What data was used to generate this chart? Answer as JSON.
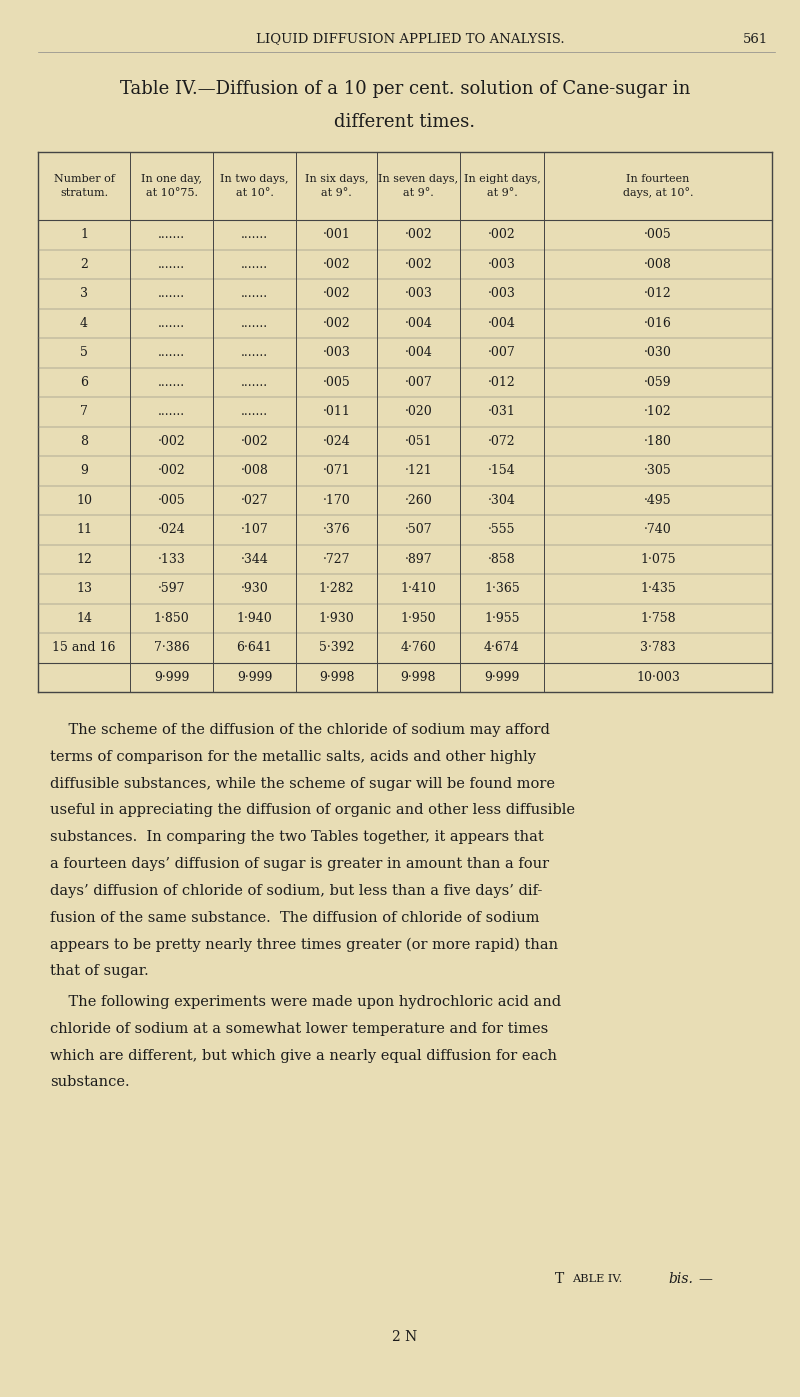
{
  "background_color": "#e8ddb5",
  "page_number": "561",
  "header_text": "LIQUID DIFFUSION APPLIED TO ANALYSIS.",
  "table_title_line1": "Table IV.—Diffusion of a 10 per cent. solution of Cane-sugar in",
  "table_title_line2": "different times.",
  "col_headers": [
    "Number of\nstratum.",
    "In one day,\nat 10°75.",
    "In two days,\nat 10°.",
    "In six days,\nat 9°.",
    "In seven days,\nat 9°.",
    "In eight days,\nat 9°.",
    "In fourteen\ndays, at 10°."
  ],
  "table_data": [
    [
      "1",
      ".......",
      ".......",
      "·001",
      "·002",
      "·002",
      "·005"
    ],
    [
      "2",
      ".......",
      ".......",
      "·002",
      "·002",
      "·003",
      "·008"
    ],
    [
      "3",
      ".......",
      ".......",
      "·002",
      "·003",
      "·003",
      "·012"
    ],
    [
      "4",
      ".......",
      ".......",
      "·002",
      "·004",
      "·004",
      "·016"
    ],
    [
      "5",
      ".......",
      ".......",
      "·003",
      "·004",
      "·007",
      "·030"
    ],
    [
      "6",
      ".......",
      ".......",
      "·005",
      "·007",
      "·012",
      "·059"
    ],
    [
      "7",
      ".......",
      ".......",
      "·011",
      "·020",
      "·031",
      "·102"
    ],
    [
      "8",
      "·002",
      "·002",
      "·024",
      "·051",
      "·072",
      "·180"
    ],
    [
      "9",
      "·002",
      "·008",
      "·071",
      "·121",
      "·154",
      "·305"
    ],
    [
      "10",
      "·005",
      "·027",
      "·170",
      "·260",
      "·304",
      "·495"
    ],
    [
      "11",
      "·024",
      "·107",
      "·376",
      "·507",
      "·555",
      "·740"
    ],
    [
      "12",
      "·133",
      "·344",
      "·727",
      "·897",
      "·858",
      "1·075"
    ],
    [
      "13",
      "·597",
      "·930",
      "1·282",
      "1·410",
      "1·365",
      "1·435"
    ],
    [
      "14",
      "1·850",
      "1·940",
      "1·930",
      "1·950",
      "1·955",
      "1·758"
    ],
    [
      "15 and 16",
      "7·386",
      "6·641",
      "5·392",
      "4·760",
      "4·674",
      "3·783"
    ],
    [
      "",
      "9·999",
      "9·999",
      "9·998",
      "9·998",
      "9·999",
      "10·003"
    ]
  ],
  "body_paragraphs": [
    [
      "    The scheme of the diffusion of the chloride of sodium may afford",
      "terms of comparison for the metallic salts, acids and other highly",
      "diffusible substances, while the scheme of sugar will be found more",
      "useful in appreciating the diffusion of organic and other less diffusible",
      "substances.  In comparing the two Tables together, it appears that",
      "a fourteen days’ diffusion of sugar is greater in amount than a four",
      "days’ diffusion of chloride of sodium, but less than a five days’ dif-",
      "fusion of the same substance.  The diffusion of chloride of sodium",
      "appears to be pretty nearly three times greater (or more rapid) than",
      "that of sugar."
    ],
    [
      "    The following experiments were made upon hydrochloric acid and",
      "chloride of sodium at a somewhat lower temperature and for times",
      "which are different, but which give a nearly equal diffusion for each",
      "substance."
    ]
  ],
  "footer_right": "Table IV. —",
  "footer_right_italic": "bis.",
  "footer_center": "2 N",
  "text_color": "#1c1c1c",
  "table_line_color": "#444444",
  "header_font_size": 9.5,
  "title_font_size": 13.0,
  "col_header_font_size": 8.0,
  "table_data_font_size": 9.0,
  "body_font_size": 10.5,
  "footer_font_size": 10.0
}
